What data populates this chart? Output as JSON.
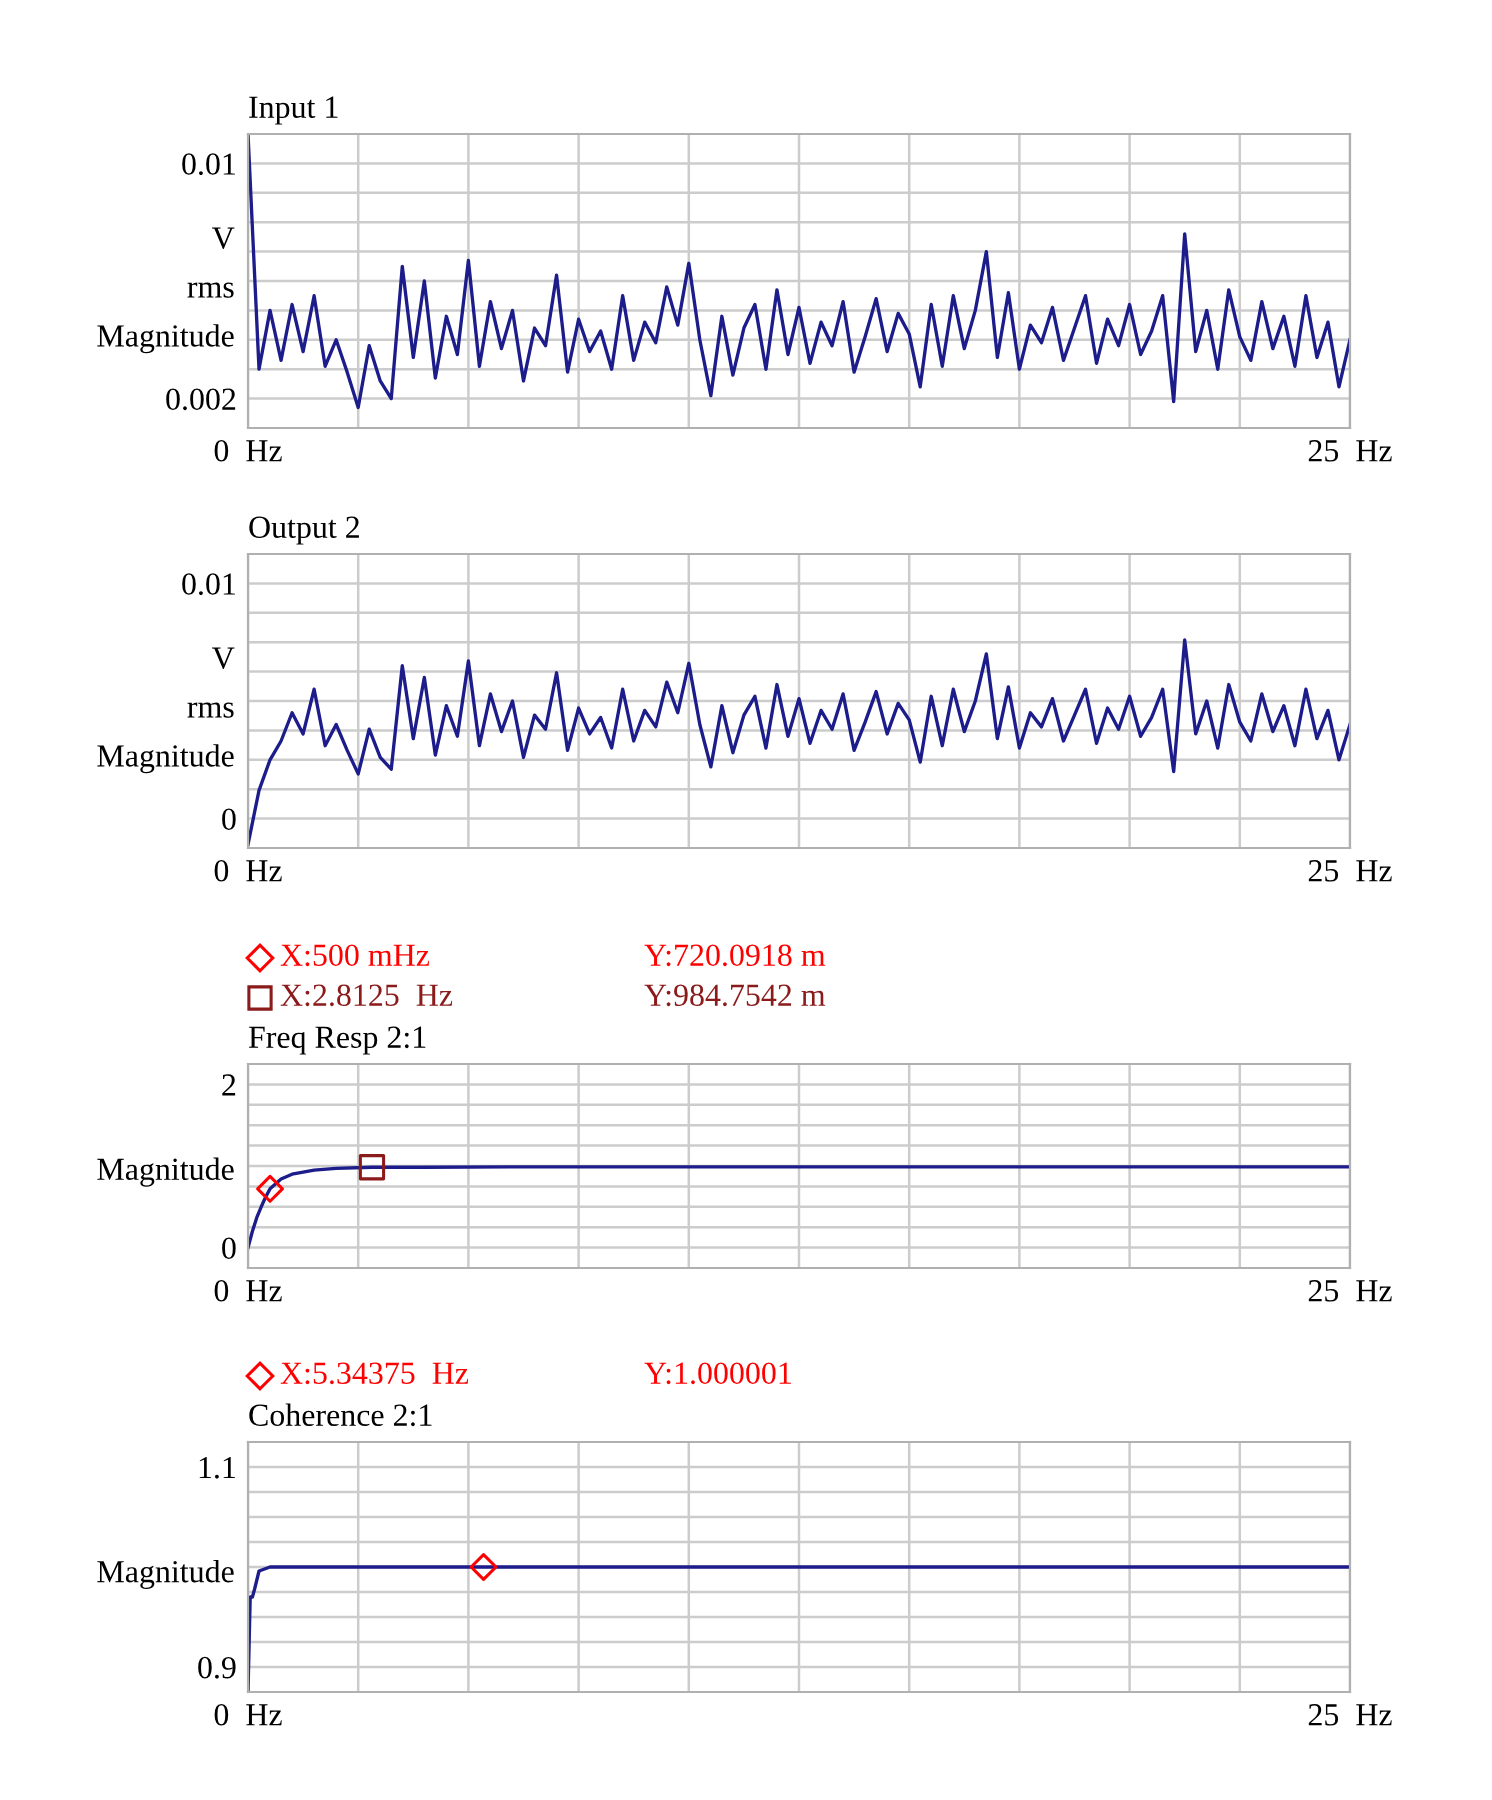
{
  "chart_data": [
    {
      "type": "line",
      "title": "Input 1",
      "ylabel": "V\nrms\nMagnitude",
      "grid": true,
      "xlim": [
        0,
        25
      ],
      "xticks": [
        {
          "value": 0,
          "label": "0  Hz"
        },
        {
          "value": 2.5,
          "label": null
        },
        {
          "value": 5,
          "label": null
        },
        {
          "value": 7.5,
          "label": null
        },
        {
          "value": 10,
          "label": null
        },
        {
          "value": 12.5,
          "label": null
        },
        {
          "value": 15,
          "label": null
        },
        {
          "value": 17.5,
          "label": null
        },
        {
          "value": 20,
          "label": null
        },
        {
          "value": 22.5,
          "label": null
        },
        {
          "value": 25,
          "label": "25  Hz"
        }
      ],
      "ylim": [
        0.001,
        0.011
      ],
      "yticks": [
        {
          "value": 0.002,
          "label": "0.002"
        },
        {
          "value": 0.003,
          "label": null
        },
        {
          "value": 0.004,
          "label": null
        },
        {
          "value": 0.005,
          "label": null
        },
        {
          "value": 0.006,
          "label": null
        },
        {
          "value": 0.007,
          "label": null
        },
        {
          "value": 0.008,
          "label": null
        },
        {
          "value": 0.009,
          "label": null
        },
        {
          "value": 0.01,
          "label": "0.01"
        }
      ],
      "series": [
        {
          "color": "#1c1c8a",
          "x": [
            0,
            0.25,
            0.5,
            0.75,
            1,
            1.25,
            1.5,
            1.75,
            2,
            2.25,
            2.5,
            2.75,
            3,
            3.25,
            3.5,
            3.75,
            4,
            4.25,
            4.5,
            4.75,
            5,
            5.25,
            5.5,
            5.75,
            6,
            6.25,
            6.5,
            6.75,
            7,
            7.25,
            7.5,
            7.75,
            8,
            8.25,
            8.5,
            8.75,
            9,
            9.25,
            9.5,
            9.75,
            10,
            10.25,
            10.5,
            10.75,
            11,
            11.25,
            11.5,
            11.75,
            12,
            12.25,
            12.5,
            12.75,
            13,
            13.25,
            13.5,
            13.75,
            14,
            14.25,
            14.5,
            14.75,
            15,
            15.25,
            15.5,
            15.75,
            16,
            16.25,
            16.5,
            16.75,
            17,
            17.25,
            17.5,
            17.75,
            18,
            18.25,
            18.5,
            18.75,
            19,
            19.25,
            19.5,
            19.75,
            20,
            20.25,
            20.5,
            20.75,
            21,
            21.25,
            21.5,
            21.75,
            22,
            22.25,
            22.5,
            22.75,
            23,
            23.25,
            23.5,
            23.75,
            24,
            24.25,
            24.5,
            24.75,
            25
          ],
          "values": [
            0.011,
            0.003,
            0.005,
            0.0033,
            0.0052,
            0.0036,
            0.0055,
            0.0031,
            0.004,
            0.0029,
            0.0017,
            0.0038,
            0.0026,
            0.002,
            0.0065,
            0.0034,
            0.006,
            0.0027,
            0.0048,
            0.0035,
            0.0067,
            0.0031,
            0.0053,
            0.0037,
            0.005,
            0.0026,
            0.0044,
            0.0038,
            0.0062,
            0.0029,
            0.0047,
            0.0036,
            0.0043,
            0.003,
            0.0055,
            0.0033,
            0.0046,
            0.0039,
            0.0058,
            0.0045,
            0.0066,
            0.004,
            0.0021,
            0.0048,
            0.0028,
            0.0044,
            0.0052,
            0.003,
            0.0057,
            0.0035,
            0.0051,
            0.0032,
            0.0046,
            0.0038,
            0.0053,
            0.0029,
            0.0041,
            0.0054,
            0.0036,
            0.0049,
            0.0042,
            0.0024,
            0.0052,
            0.0031,
            0.0055,
            0.0037,
            0.005,
            0.007,
            0.0034,
            0.0056,
            0.003,
            0.0045,
            0.0039,
            0.0051,
            0.0033,
            0.0044,
            0.0055,
            0.0032,
            0.0047,
            0.0038,
            0.0052,
            0.0035,
            0.0043,
            0.0055,
            0.0019,
            0.0076,
            0.0036,
            0.005,
            0.003,
            0.0057,
            0.0041,
            0.0033,
            0.0053,
            0.0037,
            0.0048,
            0.0031,
            0.0055,
            0.0034,
            0.0046,
            0.0024,
            0.004
          ]
        }
      ]
    },
    {
      "type": "line",
      "title": "Output 2",
      "ylabel": "V\nrms\nMagnitude",
      "grid": true,
      "xlim": [
        0,
        25
      ],
      "xticks": [
        {
          "value": 0,
          "label": "0  Hz"
        },
        {
          "value": 2.5,
          "label": null
        },
        {
          "value": 5,
          "label": null
        },
        {
          "value": 7.5,
          "label": null
        },
        {
          "value": 10,
          "label": null
        },
        {
          "value": 12.5,
          "label": null
        },
        {
          "value": 15,
          "label": null
        },
        {
          "value": 17.5,
          "label": null
        },
        {
          "value": 20,
          "label": null
        },
        {
          "value": 22.5,
          "label": null
        },
        {
          "value": 25,
          "label": "25  Hz"
        }
      ],
      "ylim": [
        -0.00125,
        0.01125
      ],
      "yticks": [
        {
          "value": 0,
          "label": "0"
        },
        {
          "value": 0.00125,
          "label": null
        },
        {
          "value": 0.0025,
          "label": null
        },
        {
          "value": 0.00375,
          "label": null
        },
        {
          "value": 0.005,
          "label": null
        },
        {
          "value": 0.00625,
          "label": null
        },
        {
          "value": 0.0075,
          "label": null
        },
        {
          "value": 0.00875,
          "label": null
        },
        {
          "value": 0.01,
          "label": "0.01"
        }
      ],
      "series": [
        {
          "color": "#1c1c8a",
          "x": [
            0,
            0.25,
            0.5,
            0.75,
            1,
            1.25,
            1.5,
            1.75,
            2,
            2.25,
            2.5,
            2.75,
            3,
            3.25,
            3.5,
            3.75,
            4,
            4.25,
            4.5,
            4.75,
            5,
            5.25,
            5.5,
            5.75,
            6,
            6.25,
            6.5,
            6.75,
            7,
            7.25,
            7.5,
            7.75,
            8,
            8.25,
            8.5,
            8.75,
            9,
            9.25,
            9.5,
            9.75,
            10,
            10.25,
            10.5,
            10.75,
            11,
            11.25,
            11.5,
            11.75,
            12,
            12.25,
            12.5,
            12.75,
            13,
            13.25,
            13.5,
            13.75,
            14,
            14.25,
            14.5,
            14.75,
            15,
            15.25,
            15.5,
            15.75,
            16,
            16.25,
            16.5,
            16.75,
            17,
            17.25,
            17.5,
            17.75,
            18,
            18.25,
            18.5,
            18.75,
            19,
            19.25,
            19.5,
            19.75,
            20,
            20.25,
            20.5,
            20.75,
            21,
            21.25,
            21.5,
            21.75,
            22,
            22.25,
            22.5,
            22.75,
            23,
            23.25,
            23.5,
            23.75,
            24,
            24.25,
            24.5,
            24.75,
            25
          ],
          "values": [
            -0.0011,
            0.0012,
            0.0025,
            0.0033,
            0.0045,
            0.0036,
            0.0055,
            0.0031,
            0.004,
            0.0029,
            0.0019,
            0.0038,
            0.0026,
            0.0021,
            0.0065,
            0.0034,
            0.006,
            0.0027,
            0.0048,
            0.0035,
            0.0067,
            0.0031,
            0.0053,
            0.0037,
            0.005,
            0.0026,
            0.0044,
            0.0038,
            0.0062,
            0.0029,
            0.0047,
            0.0036,
            0.0043,
            0.003,
            0.0055,
            0.0033,
            0.0046,
            0.0039,
            0.0058,
            0.0045,
            0.0066,
            0.004,
            0.0022,
            0.0048,
            0.0028,
            0.0044,
            0.0052,
            0.003,
            0.0057,
            0.0035,
            0.0051,
            0.0032,
            0.0046,
            0.0038,
            0.0053,
            0.0029,
            0.0041,
            0.0054,
            0.0036,
            0.0049,
            0.0042,
            0.0024,
            0.0052,
            0.0031,
            0.0055,
            0.0037,
            0.005,
            0.007,
            0.0034,
            0.0056,
            0.003,
            0.0045,
            0.0039,
            0.0051,
            0.0033,
            0.0044,
            0.0055,
            0.0032,
            0.0047,
            0.0038,
            0.0052,
            0.0035,
            0.0043,
            0.0055,
            0.002,
            0.0076,
            0.0036,
            0.005,
            0.003,
            0.0057,
            0.0041,
            0.0033,
            0.0053,
            0.0037,
            0.0048,
            0.0031,
            0.0055,
            0.0034,
            0.0046,
            0.0025,
            0.004
          ]
        }
      ]
    },
    {
      "type": "line",
      "title": "Freq Resp 2:1",
      "ylabel": "Magnitude",
      "grid": true,
      "legend": "top left",
      "annotations": [
        "Y:720.0918 m",
        "Y:984.7542 m"
      ],
      "xlim": [
        0,
        25
      ],
      "xticks": [
        {
          "value": 0,
          "label": "0  Hz"
        },
        {
          "value": 2.5,
          "label": null
        },
        {
          "value": 5,
          "label": null
        },
        {
          "value": 7.5,
          "label": null
        },
        {
          "value": 10,
          "label": null
        },
        {
          "value": 12.5,
          "label": null
        },
        {
          "value": 15,
          "label": null
        },
        {
          "value": 17.5,
          "label": null
        },
        {
          "value": 20,
          "label": null
        },
        {
          "value": 22.5,
          "label": null
        },
        {
          "value": 25,
          "label": "25  Hz"
        }
      ],
      "ylim": [
        -0.25,
        2.25
      ],
      "yticks": [
        {
          "value": 0,
          "label": "0"
        },
        {
          "value": 0.25,
          "label": null
        },
        {
          "value": 0.5,
          "label": null
        },
        {
          "value": 0.75,
          "label": null
        },
        {
          "value": 1,
          "label": null
        },
        {
          "value": 1.25,
          "label": null
        },
        {
          "value": 1.5,
          "label": null
        },
        {
          "value": 1.75,
          "label": null
        },
        {
          "value": 2,
          "label": "2"
        }
      ],
      "series": [
        {
          "color": "#1c1c8a",
          "x": [
            0,
            0.1,
            0.2,
            0.3,
            0.4,
            0.5,
            0.75,
            1,
            1.5,
            2,
            2.8125,
            4,
            6,
            25
          ],
          "values": [
            0,
            0.2,
            0.37,
            0.5,
            0.62,
            0.72,
            0.84,
            0.9,
            0.95,
            0.97,
            0.985,
            0.985,
            0.99,
            0.99
          ]
        },
        {
          "type": "scatter",
          "name": "X:500 mHz",
          "color": "#ff0000",
          "marker": "diamond",
          "x": [
            0.5
          ],
          "values": [
            0.7200918
          ]
        },
        {
          "type": "scatter",
          "name": "X:2.8125  Hz",
          "color": "#8b1a1a",
          "marker": "square",
          "x": [
            2.8125
          ],
          "values": [
            0.9847542
          ]
        }
      ]
    },
    {
      "type": "line",
      "title": "Coherence 2:1",
      "ylabel": "Magnitude",
      "grid": true,
      "legend": "top left",
      "annotations": [
        "Y:1.000001"
      ],
      "xlim": [
        0,
        25
      ],
      "xticks": [
        {
          "value": 0,
          "label": "0  Hz"
        },
        {
          "value": 2.5,
          "label": null
        },
        {
          "value": 5,
          "label": null
        },
        {
          "value": 7.5,
          "label": null
        },
        {
          "value": 10,
          "label": null
        },
        {
          "value": 12.5,
          "label": null
        },
        {
          "value": 15,
          "label": null
        },
        {
          "value": 17.5,
          "label": null
        },
        {
          "value": 20,
          "label": null
        },
        {
          "value": 22.5,
          "label": null
        },
        {
          "value": 25,
          "label": "25  Hz"
        }
      ],
      "ylim": [
        0.875,
        1.125
      ],
      "yticks": [
        {
          "value": 0.9,
          "label": "0.9"
        },
        {
          "value": 0.925,
          "label": null
        },
        {
          "value": 0.95,
          "label": null
        },
        {
          "value": 0.975,
          "label": null
        },
        {
          "value": 1,
          "label": null
        },
        {
          "value": 1.025,
          "label": null
        },
        {
          "value": 1.05,
          "label": null
        },
        {
          "value": 1.075,
          "label": null
        },
        {
          "value": 1.1,
          "label": "1.1"
        }
      ],
      "series": [
        {
          "color": "#1c1c8a",
          "x": [
            0,
            0.05,
            0.1,
            0.15,
            0.25,
            0.5,
            25
          ],
          "values": [
            0.875,
            0.97,
            0.97,
            0.978,
            0.996,
            1.0,
            1.0
          ]
        },
        {
          "type": "scatter",
          "name": "X:5.34375  Hz",
          "color": "#ff0000",
          "marker": "diamond",
          "x": [
            5.34375
          ],
          "values": [
            1.000001
          ]
        }
      ]
    }
  ]
}
